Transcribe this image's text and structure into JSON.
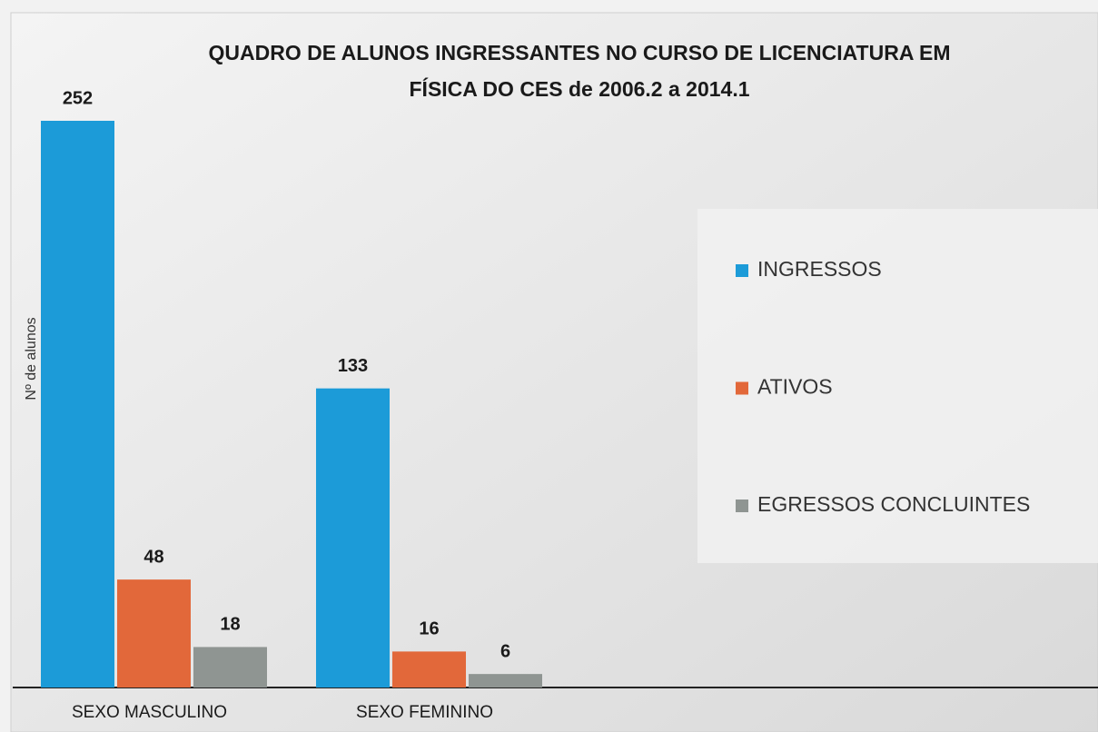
{
  "chart_data": {
    "type": "bar",
    "title": [
      "QUADRO DE ALUNOS INGRESSANTES NO CURSO DE LICENCIATURA EM",
      "FÍSICA DO CES de 2006.2 a 2014.1"
    ],
    "y_label": "Nº de alunos",
    "categories": [
      "SEXO MASCULINO",
      "SEXO FEMININO"
    ],
    "series": [
      {
        "name": "INGRESSOS",
        "color": "#1c9bd8",
        "values": [
          252,
          133
        ]
      },
      {
        "name": "ATIVOS",
        "color": "#e2683a",
        "values": [
          48,
          16
        ]
      },
      {
        "name": "EGRESSOS CONCLUINTES",
        "color": "#8f9592",
        "values": [
          18,
          6
        ]
      }
    ],
    "legend": "right"
  }
}
